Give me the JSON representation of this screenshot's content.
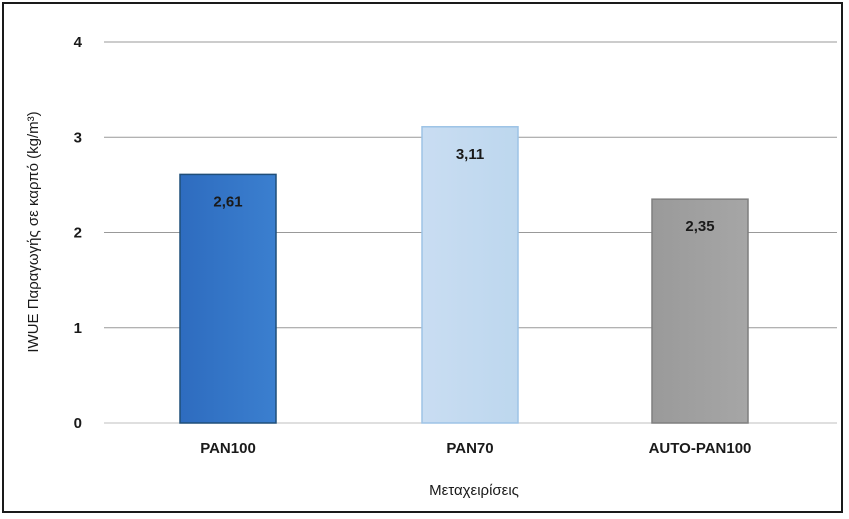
{
  "chart_data": {
    "type": "bar",
    "categories": [
      "PAN100",
      "PAN70",
      "AUTO-PAN100"
    ],
    "values": [
      2.61,
      3.11,
      2.35
    ],
    "value_labels": [
      "2,61",
      "3,11",
      "2,35"
    ],
    "bar_colors": [
      "#3b7fcf",
      "#bdd7ee",
      "#a6a6a6"
    ],
    "bar_gradient_tops": [
      "#2e6cbf",
      "#c9ddf2",
      "#9a9a9a"
    ],
    "bar_edge_colors": [
      "#1f4e79",
      "#9dc3e6",
      "#7f7f7f"
    ],
    "title": "",
    "xlabel": "Μεταχειρίσεις",
    "ylabel": "IWUE Παραγωγής σε καρπό (kg/m³)",
    "ylim": [
      0,
      4
    ],
    "yticks": [
      "0",
      "1",
      "2",
      "3",
      "4"
    ],
    "grid": true,
    "gridline_color": "#999999"
  }
}
